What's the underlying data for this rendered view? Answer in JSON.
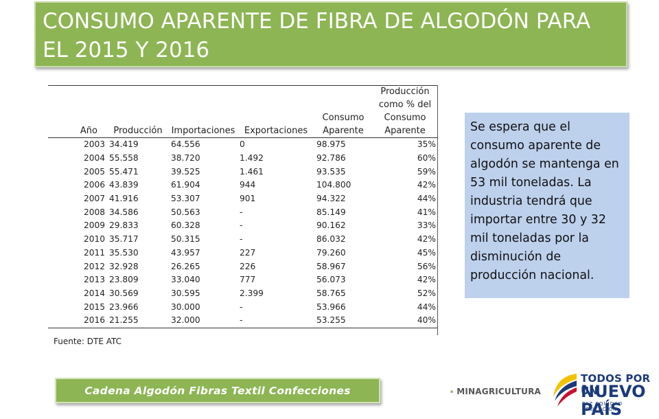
{
  "title": {
    "line1": "CONSUMO APARENTE DE FIBRA DE ALGODÓN PARA",
    "line2": "EL 2015 Y 2016"
  },
  "table": {
    "headers": {
      "year": "Año",
      "production": "Producción",
      "imports": "Importaciones",
      "exports": "Exportaciones",
      "consumption_line1": "Consumo",
      "consumption_line2": "Aparente",
      "pct_line1": "Producción",
      "pct_line2": "como % del",
      "pct_line3": "Consumo",
      "pct_line4": "Aparente"
    },
    "rows": [
      {
        "year": "2003",
        "production": "34.419",
        "imports": "64.556",
        "exports": "0",
        "consumption": "98.975",
        "pct": "35%"
      },
      {
        "year": "2004",
        "production": "55.558",
        "imports": "38.720",
        "exports": "1.492",
        "consumption": "92.786",
        "pct": "60%"
      },
      {
        "year": "2005",
        "production": "55.471",
        "imports": "39.525",
        "exports": "1.461",
        "consumption": "93.535",
        "pct": "59%"
      },
      {
        "year": "2006",
        "production": "43.839",
        "imports": "61.904",
        "exports": "944",
        "consumption": "104.800",
        "pct": "42%"
      },
      {
        "year": "2007",
        "production": "41.916",
        "imports": "53.307",
        "exports": "901",
        "consumption": "94.322",
        "pct": "44%"
      },
      {
        "year": "2008",
        "production": "34.586",
        "imports": "50.563",
        "exports": "-",
        "consumption": "85.149",
        "pct": "41%"
      },
      {
        "year": "2009",
        "production": "29.833",
        "imports": "60.328",
        "exports": "-",
        "consumption": "90.162",
        "pct": "33%"
      },
      {
        "year": "2010",
        "production": "35.717",
        "imports": "50.315",
        "exports": "-",
        "consumption": "86.032",
        "pct": "42%"
      },
      {
        "year": "2011",
        "production": "35.530",
        "imports": "43.957",
        "exports": "227",
        "consumption": "79.260",
        "pct": "45%"
      },
      {
        "year": "2012",
        "production": "32.928",
        "imports": "26.265",
        "exports": "226",
        "consumption": "58.967",
        "pct": "56%"
      },
      {
        "year": "2013",
        "production": "23.809",
        "imports": "33.040",
        "exports": "777",
        "consumption": "56.073",
        "pct": "42%"
      },
      {
        "year": "2014",
        "production": "30.569",
        "imports": "30.595",
        "exports": "2.399",
        "consumption": "58.765",
        "pct": "52%"
      },
      {
        "year": "2015",
        "production": "23.966",
        "imports": "30.000",
        "exports": "-",
        "consumption": "53.966",
        "pct": "44%"
      },
      {
        "year": "2016",
        "production": "21.255",
        "imports": "32.000",
        "exports": "-",
        "consumption": "53.255",
        "pct": "40%"
      }
    ],
    "source": "Fuente: DTE ATC"
  },
  "note": {
    "text": "Se espera que el consumo aparente de algodón se mantenga en 53  mil toneladas. La industria tendrá que importar entre 30 y 32 mil toneladas por la disminución de producción nacional."
  },
  "footer": {
    "chain_label": "Cadena  Algodón  Fibras  Textil  Confecciones",
    "minag_label": "MINAGRICULTURA",
    "todos_line1": "TODOS POR UN",
    "todos_line2": "NUEVO PAÍS",
    "todos_line3": "PAZ  EQUIDAD  EDUCACIÓN"
  },
  "colors": {
    "title_bg": "#8db554",
    "note_bg": "#bdd0ec",
    "logo_blue": "#1b3a7a"
  }
}
